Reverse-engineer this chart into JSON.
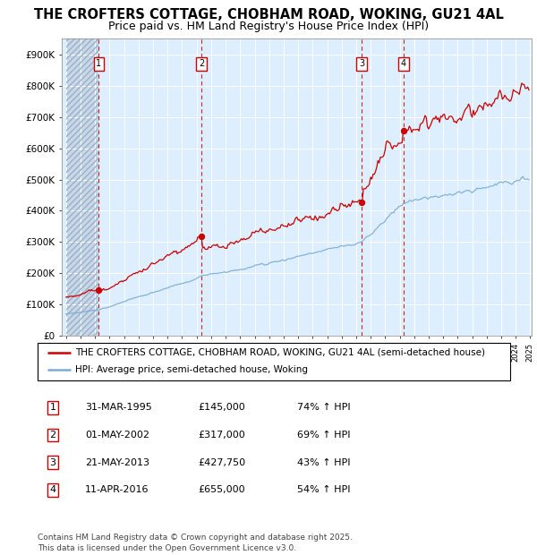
{
  "title": "THE CROFTERS COTTAGE, CHOBHAM ROAD, WOKING, GU21 4AL",
  "subtitle": "Price paid vs. HM Land Registry's House Price Index (HPI)",
  "ylim": [
    0,
    950000
  ],
  "yticks": [
    0,
    100000,
    200000,
    300000,
    400000,
    500000,
    600000,
    700000,
    800000,
    900000
  ],
  "ytick_labels": [
    "£0",
    "£100K",
    "£200K",
    "£300K",
    "£400K",
    "£500K",
    "£600K",
    "£700K",
    "£800K",
    "£900K"
  ],
  "x_start_year": 1993,
  "x_end_year": 2025,
  "sale_prices": [
    145000,
    317000,
    427750,
    655000
  ],
  "sale_labels": [
    "1",
    "2",
    "3",
    "4"
  ],
  "legend_entries": [
    "THE CROFTERS COTTAGE, CHOBHAM ROAD, WOKING, GU21 4AL (semi-detached house)",
    "HPI: Average price, semi-detached house, Woking"
  ],
  "line_color_red": "#cc0000",
  "line_color_blue": "#7aadd4",
  "dot_color": "#cc0000",
  "vline_color": "#cc0000",
  "bg_color": "#ddeeff",
  "hatch_bg_color": "#c8d8e8",
  "grid_color": "#ffffff",
  "table_rows": [
    [
      "1",
      "31-MAR-1995",
      "£145,000",
      "74% ↑ HPI"
    ],
    [
      "2",
      "01-MAY-2002",
      "£317,000",
      "69% ↑ HPI"
    ],
    [
      "3",
      "21-MAY-2013",
      "£427,750",
      "43% ↑ HPI"
    ],
    [
      "4",
      "11-APR-2016",
      "£655,000",
      "54% ↑ HPI"
    ]
  ],
  "footer_text": "Contains HM Land Registry data © Crown copyright and database right 2025.\nThis data is licensed under the Open Government Licence v3.0.",
  "title_fontsize": 10.5,
  "subtitle_fontsize": 9,
  "tick_fontsize": 7.5,
  "legend_fontsize": 7.5,
  "table_fontsize": 8,
  "footer_fontsize": 6.5
}
